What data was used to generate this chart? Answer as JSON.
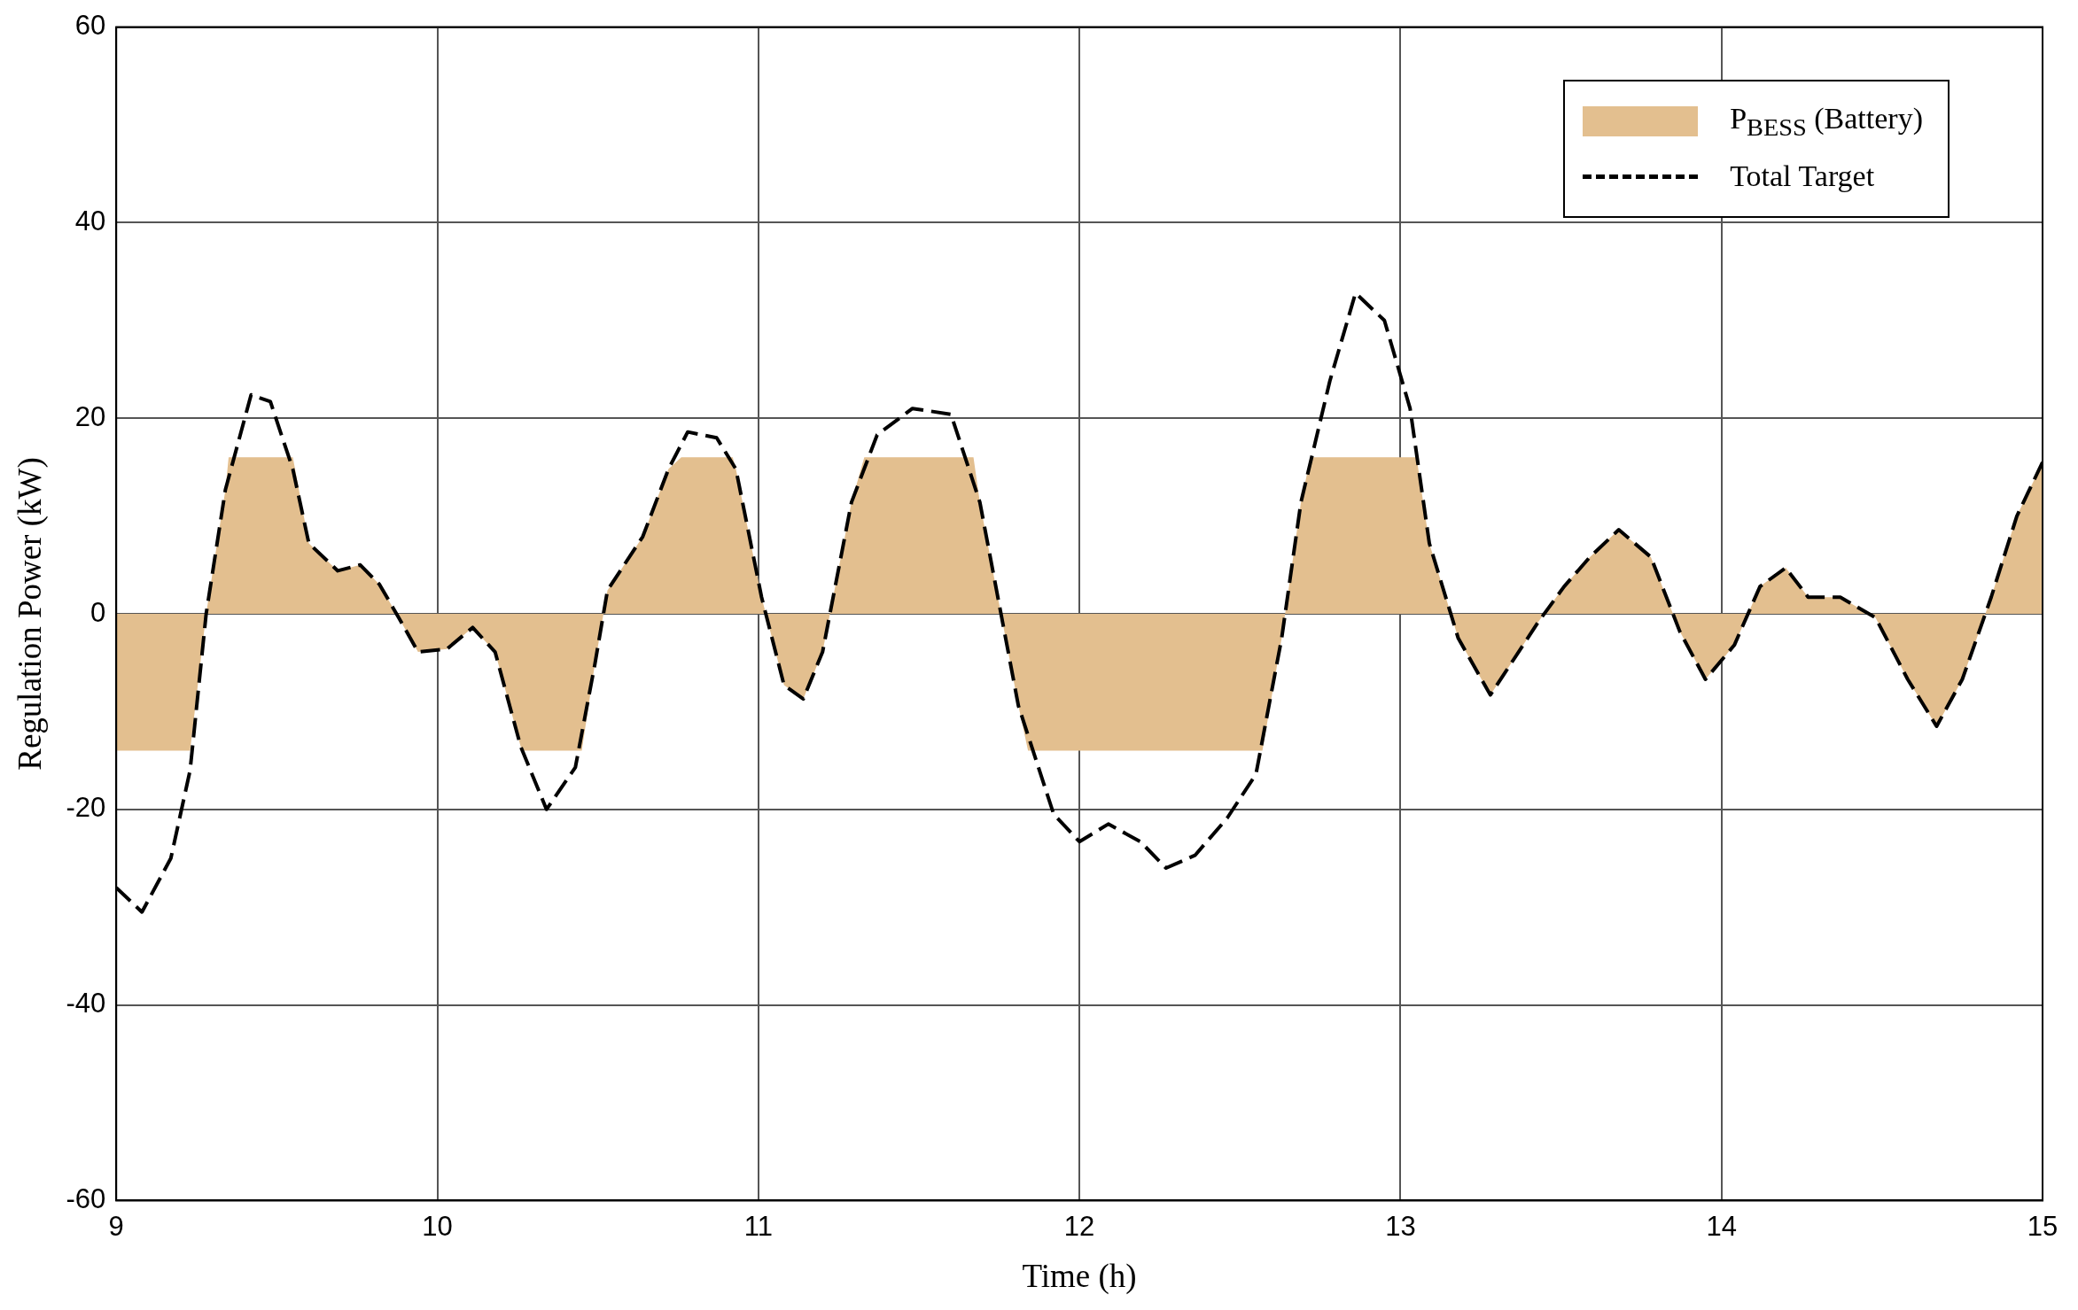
{
  "chart_data": {
    "type": "line",
    "xlabel": "Time (h)",
    "ylabel": "Regulation Power (kW)",
    "xlim": [
      9,
      15
    ],
    "xticks": [
      9,
      10,
      11,
      12,
      13,
      14,
      15
    ],
    "ylim": [
      -60,
      60
    ],
    "yticks": [
      -60,
      -40,
      -20,
      0,
      20,
      40,
      60
    ],
    "grid": true,
    "legend": "top right",
    "marker": "none",
    "series": [
      {
        "name": "P$_{BESS}$ (Battery)",
        "type": "area",
        "color": "#e3bf8f",
        "x": [
          9.0,
          9.23,
          9.28,
          9.34,
          9.35,
          9.55,
          9.6,
          9.69,
          9.76,
          9.82,
          9.88,
          9.94,
          10.03,
          10.11,
          10.18,
          10.26,
          10.27,
          10.45,
          10.49,
          10.53,
          10.64,
          10.72,
          10.76,
          10.92,
          10.93,
          11.01,
          11.08,
          11.14,
          11.2,
          11.29,
          11.33,
          11.67,
          11.69,
          11.75,
          11.81,
          11.84,
          12.57,
          12.63,
          12.69,
          12.72,
          13.05,
          13.09,
          13.18,
          13.28,
          13.34,
          13.43,
          13.51,
          13.59,
          13.68,
          13.78,
          13.87,
          13.95,
          14.04,
          14.12,
          14.2,
          14.27,
          14.37,
          14.48,
          14.58,
          14.67,
          14.75,
          14.84,
          14.92,
          15.0
        ],
        "values": [
          -14,
          -14,
          0,
          12.7,
          16,
          16,
          7.2,
          4.4,
          5,
          3,
          -0.4,
          -3.9,
          -3.6,
          -1.4,
          -3.9,
          -13.6,
          -14,
          -14,
          -5.3,
          2.4,
          7.9,
          14.8,
          16,
          16,
          14.8,
          1.7,
          -7.3,
          -8.7,
          -3.9,
          11.4,
          16,
          16,
          11.4,
          1,
          -9.4,
          -14,
          -14,
          -2.5,
          11.4,
          16,
          16,
          7.2,
          -2.5,
          -8.3,
          -5.3,
          -0.8,
          2.8,
          5.8,
          8.6,
          5.8,
          -1.8,
          -6.7,
          -3.2,
          2.8,
          4.7,
          1.7,
          1.7,
          -0.4,
          -6.7,
          -11.5,
          -6.7,
          1.7,
          10,
          15.5
        ]
      },
      {
        "name": "Total Target",
        "type": "line",
        "color": "#000000",
        "line_style": "dashed",
        "x": [
          9.0,
          9.08,
          9.17,
          9.23,
          9.28,
          9.34,
          9.42,
          9.48,
          9.55,
          9.6,
          9.69,
          9.76,
          9.82,
          9.88,
          9.94,
          10.03,
          10.11,
          10.18,
          10.26,
          10.34,
          10.43,
          10.49,
          10.53,
          10.64,
          10.72,
          10.78,
          10.87,
          10.93,
          11.01,
          11.08,
          11.14,
          11.2,
          11.29,
          11.37,
          11.48,
          11.6,
          11.69,
          11.75,
          11.81,
          11.92,
          12.0,
          12.09,
          12.19,
          12.27,
          12.36,
          12.46,
          12.55,
          12.63,
          12.69,
          12.78,
          12.86,
          12.95,
          13.03,
          13.09,
          13.18,
          13.28,
          13.34,
          13.43,
          13.51,
          13.59,
          13.68,
          13.78,
          13.87,
          13.95,
          14.04,
          14.12,
          14.2,
          14.27,
          14.37,
          14.48,
          14.58,
          14.67,
          14.75,
          14.84,
          14.92,
          15.0
        ],
        "values": [
          -28,
          -30.5,
          -25,
          -16,
          0,
          12.7,
          22.4,
          21.7,
          14.8,
          7.2,
          4.4,
          5,
          3,
          -0.4,
          -3.9,
          -3.6,
          -1.4,
          -3.9,
          -13.6,
          -20,
          -15.7,
          -5.3,
          2.4,
          7.9,
          14.8,
          18.6,
          18,
          14.8,
          1.7,
          -7.3,
          -8.7,
          -3.9,
          11.4,
          18.3,
          21,
          20.4,
          11.4,
          1,
          -9.4,
          -20.5,
          -23.3,
          -21.5,
          -23.3,
          -26,
          -24.7,
          -20.9,
          -16.4,
          -2.5,
          11.4,
          23.8,
          32.8,
          30,
          21,
          7.2,
          -2.5,
          -8.3,
          -5.3,
          -0.8,
          2.8,
          5.8,
          8.6,
          5.8,
          -1.8,
          -6.7,
          -3.2,
          2.8,
          4.7,
          1.7,
          1.7,
          -0.4,
          -6.7,
          -11.5,
          -6.7,
          1.7,
          10,
          15.5
        ]
      }
    ]
  }
}
